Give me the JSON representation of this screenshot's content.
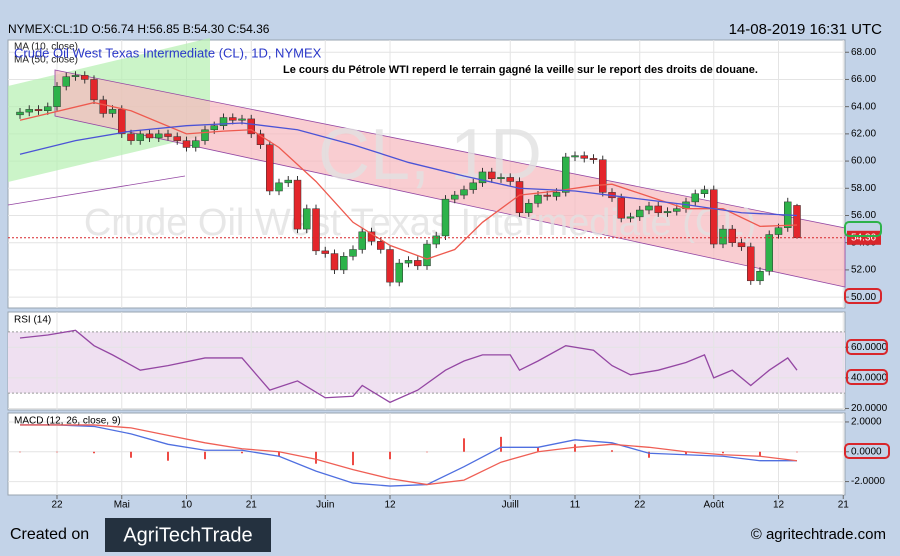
{
  "header": {
    "symbol_line": "NYMEX:CL:1D O:56.74 H:56.85 B:54.30 C:54.36",
    "timestamp": "14-08-2019 16:31 UTC"
  },
  "chart_data": [
    {
      "type": "candlestick",
      "title": "Crude Oil West Texas Intermediate (CL), 1D, NYMEX",
      "annotation": "Le cours du Pétrole WTI reperd le terrain gagné la veille sur le report des droits de douane.",
      "watermark": [
        "CL, 1D",
        "Crude Oil West Texas Intermediate (CL)"
      ],
      "categories": [
        null,
        null,
        null,
        null,
        "22",
        null,
        null,
        null,
        null,
        null,
        null,
        "Mai",
        null,
        null,
        null,
        null,
        null,
        null,
        "10",
        null,
        null,
        null,
        null,
        null,
        null,
        "21",
        null,
        null,
        null,
        null,
        null,
        null,
        null,
        "Juin",
        null,
        null,
        null,
        null,
        null,
        null,
        "12",
        null,
        null,
        null,
        null,
        null,
        null,
        null,
        null,
        null,
        null,
        null,
        null,
        "Juill",
        null,
        null,
        null,
        null,
        null,
        null,
        "11",
        null,
        null,
        null,
        null,
        null,
        null,
        "22",
        null,
        null,
        null,
        null,
        null,
        null,
        null,
        "Août",
        null,
        null,
        null,
        null,
        null,
        null,
        "12",
        null,
        null,
        null,
        null,
        null,
        null,
        "21"
      ],
      "open": [
        63.4,
        63.6,
        63.8,
        63.7,
        64.0,
        65.5,
        66.2,
        66.3,
        66.0,
        64.5,
        63.5,
        63.8,
        62.0,
        61.5,
        62.0,
        61.7,
        62.0,
        61.8,
        61.5,
        61.0,
        61.5,
        62.3,
        62.6,
        63.2,
        63.0,
        63.1,
        62.0,
        61.2,
        57.8,
        58.4,
        58.6,
        55.0,
        56.5,
        53.4,
        53.2,
        52.0,
        53.0,
        53.5,
        54.8,
        54.1,
        53.5,
        51.1,
        52.5,
        52.7,
        52.3,
        53.9,
        54.5,
        57.2,
        57.5,
        57.9,
        58.4,
        59.2,
        58.7,
        58.8,
        58.5,
        56.2,
        56.9,
        57.5,
        57.4,
        57.7,
        60.3,
        60.4,
        60.2,
        60.1,
        57.7,
        57.3,
        55.8,
        55.9,
        56.4,
        56.7,
        56.2,
        56.3,
        56.5,
        57.0,
        57.6,
        57.9,
        53.9,
        55.0,
        54.0,
        53.7,
        51.2,
        51.9,
        54.6,
        55.1,
        56.74,
        null,
        null,
        null,
        null,
        null
      ],
      "high": [
        63.9,
        64.1,
        64.1,
        64.3,
        65.8,
        66.5,
        66.6,
        66.6,
        66.3,
        64.8,
        64.1,
        64.1,
        62.3,
        62.3,
        62.3,
        62.3,
        62.3,
        62.1,
        61.8,
        61.8,
        62.6,
        62.9,
        63.5,
        63.5,
        63.4,
        63.4,
        62.3,
        61.5,
        58.7,
        58.9,
        58.9,
        56.8,
        56.8,
        53.7,
        53.5,
        53.3,
        53.8,
        55.1,
        55.1,
        54.4,
        53.8,
        52.8,
        53.0,
        53.0,
        54.2,
        54.8,
        57.5,
        57.8,
        58.2,
        58.7,
        59.5,
        59.5,
        59.1,
        59.1,
        58.8,
        57.2,
        57.8,
        57.8,
        58.0,
        60.6,
        60.7,
        60.7,
        60.5,
        60.4,
        58.0,
        57.6,
        56.2,
        56.7,
        57.0,
        57.0,
        56.6,
        56.8,
        57.3,
        57.9,
        58.2,
        58.2,
        55.3,
        55.3,
        54.3,
        54.0,
        52.2,
        54.9,
        55.4,
        57.3,
        56.85,
        null,
        null,
        null,
        null,
        null
      ],
      "low": [
        63.1,
        63.3,
        63.4,
        63.4,
        63.7,
        65.2,
        65.9,
        65.7,
        64.2,
        63.2,
        63.2,
        61.7,
        61.2,
        61.2,
        61.4,
        61.4,
        61.5,
        61.2,
        60.7,
        60.7,
        61.2,
        62.0,
        62.3,
        62.7,
        62.7,
        61.7,
        60.9,
        57.5,
        57.5,
        58.1,
        54.7,
        54.7,
        53.1,
        52.9,
        51.7,
        51.7,
        52.7,
        53.2,
        53.8,
        53.2,
        50.8,
        50.8,
        52.2,
        52.0,
        52.0,
        53.6,
        54.2,
        56.9,
        57.2,
        57.6,
        58.1,
        58.4,
        58.4,
        58.2,
        55.9,
        55.9,
        56.6,
        57.1,
        57.1,
        57.4,
        60.0,
        59.9,
        59.8,
        57.4,
        57.0,
        55.5,
        55.5,
        55.6,
        56.1,
        55.9,
        55.9,
        56.0,
        56.2,
        56.7,
        57.3,
        53.6,
        53.6,
        53.7,
        53.4,
        50.9,
        50.9,
        51.6,
        54.3,
        54.8,
        54.3,
        null,
        null,
        null,
        null,
        null
      ],
      "close": [
        63.6,
        63.8,
        63.7,
        64.0,
        65.5,
        66.2,
        66.3,
        66.0,
        64.5,
        63.5,
        63.8,
        62.0,
        61.5,
        62.0,
        61.7,
        62.0,
        61.8,
        61.5,
        61.0,
        61.5,
        62.3,
        62.6,
        63.2,
        63.0,
        63.1,
        62.0,
        61.2,
        57.8,
        58.4,
        58.6,
        55.0,
        56.5,
        53.4,
        53.2,
        52.0,
        53.0,
        53.5,
        54.8,
        54.1,
        53.5,
        51.1,
        52.5,
        52.7,
        52.3,
        53.9,
        54.5,
        57.2,
        57.5,
        57.9,
        58.4,
        59.2,
        58.7,
        58.8,
        58.5,
        56.2,
        56.9,
        57.5,
        57.4,
        57.7,
        60.3,
        60.4,
        60.2,
        60.1,
        57.7,
        57.3,
        55.8,
        55.9,
        56.4,
        56.7,
        56.2,
        56.3,
        56.5,
        57.0,
        57.6,
        57.9,
        53.9,
        55.0,
        54.0,
        53.7,
        51.2,
        51.9,
        54.6,
        55.1,
        57.0,
        54.36,
        null,
        null,
        null,
        null,
        null
      ],
      "up_color": "#2db24a",
      "down_color": "#e3262b",
      "series": [
        {
          "name": "MA (10, close)",
          "color": "#ee5a4f",
          "x": [
            0,
            8,
            12,
            18,
            22,
            25,
            28,
            32,
            36,
            40,
            44,
            47,
            50,
            54,
            58,
            62,
            64,
            68,
            72,
            76,
            80,
            84
          ],
          "values": [
            63.0,
            64.3,
            63.7,
            62.0,
            62.2,
            62.3,
            61.0,
            58.5,
            55.5,
            53.8,
            52.8,
            53.5,
            55.5,
            57.5,
            57.8,
            58.2,
            58.3,
            57.4,
            56.5,
            56.5,
            55.2,
            55.3
          ]
        },
        {
          "name": "MA (50, close)",
          "color": "#4b53d6",
          "x": [
            0,
            6,
            12,
            18,
            24,
            30,
            36,
            42,
            48,
            54,
            60,
            66,
            72,
            78,
            84
          ],
          "values": [
            60.5,
            61.5,
            62.2,
            62.6,
            62.8,
            62.3,
            61.2,
            59.9,
            58.9,
            58.0,
            57.8,
            57.3,
            56.8,
            56.2,
            56.0
          ]
        }
      ],
      "ylim": [
        49.2,
        68.9
      ],
      "yticks": [
        {
          "value": 50,
          "label": "50.00"
        },
        {
          "value": 52,
          "label": "52.00"
        },
        {
          "value": 54,
          "label": "54.00"
        },
        {
          "value": 56,
          "label": "56.00"
        },
        {
          "value": 58,
          "label": "58.00"
        },
        {
          "value": 60,
          "label": "60.00"
        },
        {
          "value": 62,
          "label": "62.00"
        },
        {
          "value": 64,
          "label": "64.00"
        },
        {
          "value": 66,
          "label": "66.00"
        },
        {
          "value": 68,
          "label": "68.00"
        }
      ],
      "grid": true
    },
    {
      "type": "line",
      "title": "RSI (14)",
      "bands": [
        30,
        70
      ],
      "band_color": "#efe0f1",
      "series": [
        {
          "color": "#9447a3",
          "x": [
            0,
            3,
            6,
            8,
            10,
            13,
            16,
            20,
            24,
            27,
            30,
            33,
            36,
            37,
            40,
            43,
            46,
            48,
            50,
            53,
            54,
            56,
            59,
            62,
            64,
            66,
            69,
            72,
            74,
            75,
            77,
            79,
            81,
            83,
            84
          ],
          "values": [
            66,
            68,
            71,
            61,
            55,
            45,
            48,
            53,
            53,
            32,
            38,
            27,
            28,
            35,
            24,
            32,
            45,
            51,
            55,
            55,
            45,
            51,
            61,
            58,
            48,
            42,
            45,
            50,
            55,
            40,
            45,
            35,
            45,
            53,
            45
          ]
        }
      ],
      "ylim": [
        19,
        83
      ],
      "yticks": [
        {
          "value": 20,
          "label": "20.0000"
        },
        {
          "value": 40,
          "label": "40.0000"
        },
        {
          "value": 60,
          "label": "60.0000"
        }
      ],
      "grid": true
    },
    {
      "type": "line",
      "title": "MACD (12, 26, close, 9)",
      "series": [
        {
          "style": "bar",
          "color": "#ee4a44",
          "x": [
            0,
            4,
            8,
            12,
            16,
            20,
            24,
            28,
            32,
            36,
            40,
            44,
            48,
            52,
            56,
            60,
            64,
            68,
            72,
            76,
            80,
            84
          ],
          "values": [
            0,
            0,
            -0.1,
            -0.4,
            -0.6,
            -0.5,
            -0.1,
            -0.3,
            -0.8,
            -0.9,
            -0.5,
            0,
            0.9,
            1.0,
            0.3,
            0.5,
            0.1,
            -0.4,
            -0.2,
            -0.1,
            -0.3,
            0
          ]
        },
        {
          "color": "#4f6fe0",
          "x": [
            0,
            4,
            8,
            12,
            16,
            20,
            24,
            28,
            32,
            36,
            40,
            44,
            48,
            52,
            56,
            60,
            64,
            68,
            72,
            76,
            80,
            84
          ],
          "values": [
            1.8,
            1.8,
            1.7,
            1.2,
            0.5,
            0.1,
            0.1,
            -0.3,
            -1.3,
            -2.1,
            -2.3,
            -2.2,
            -1.0,
            0.3,
            0.3,
            0.8,
            0.6,
            -0.1,
            -0.2,
            -0.3,
            -0.6,
            -0.6
          ]
        },
        {
          "color": "#ef5f55",
          "x": [
            0,
            4,
            8,
            12,
            16,
            20,
            24,
            28,
            32,
            36,
            40,
            44,
            48,
            52,
            56,
            60,
            64,
            68,
            72,
            76,
            80,
            84
          ],
          "values": [
            1.8,
            1.8,
            1.8,
            1.6,
            1.1,
            0.6,
            0.2,
            0.0,
            -0.5,
            -1.2,
            -1.8,
            -2.2,
            -1.9,
            -0.7,
            0.0,
            0.3,
            0.5,
            0.3,
            0.0,
            -0.2,
            -0.3,
            -0.6
          ]
        }
      ],
      "ylim": [
        -2.9,
        2.6
      ],
      "yticks": [
        {
          "value": 2,
          "label": "2.0000"
        },
        {
          "value": 0,
          "label": "0.0000"
        },
        {
          "value": -2,
          "label": "-2.0000"
        }
      ],
      "grid": true
    }
  ],
  "footer": {
    "created_on": "Created on",
    "logo": "AgriTechTrade",
    "site": "© agritechtrade.com"
  }
}
